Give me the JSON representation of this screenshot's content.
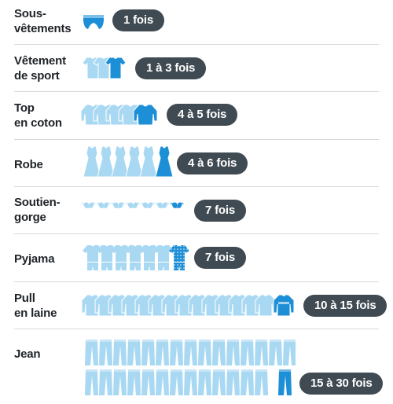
{
  "colors": {
    "icon_light": "#a9d8f2",
    "icon_dark": "#1d8fd6",
    "pill_bg": "#3f4a52",
    "pill_text": "#ffffff",
    "label_text": "#1e2328",
    "divider": "#d5d9dd"
  },
  "rows": [
    {
      "label": "Sous-\nvêtements",
      "frequency": "1 fois",
      "icon": "underwear-icon",
      "count": 1
    },
    {
      "label": "Vêtement\nde sport",
      "frequency": "1 à 3 fois",
      "icon": "sport-shirt-icon",
      "count": 3
    },
    {
      "label": "Top\nen coton",
      "frequency": "4 à 5 fois",
      "icon": "cotton-top-icon",
      "count": 5
    },
    {
      "label": "Robe",
      "frequency": "4 à 6 fois",
      "icon": "dress-icon",
      "count": 6
    },
    {
      "label": "Soutien-\ngorge",
      "frequency": "7 fois",
      "icon": "bra-icon",
      "count": 7
    },
    {
      "label": "Pyjama",
      "frequency": "7 fois",
      "icon": "pyjama-icon",
      "count": 7
    },
    {
      "label": "Pull\nen laine",
      "frequency": "10 à 15 fois",
      "icon": "wool-sweater-icon",
      "count": 15
    },
    {
      "label": "Jean",
      "frequency": "15 à 30 fois",
      "icon": "jeans-icon",
      "count": 30
    }
  ]
}
